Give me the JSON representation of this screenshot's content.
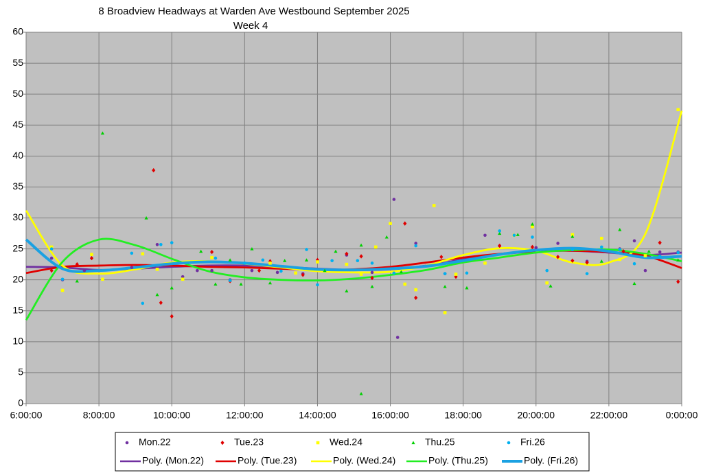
{
  "chart_data": {
    "type": "scatter",
    "title": "8 Broadview Headways at Warden Ave Westbound September 2025",
    "subtitle": "Week 4",
    "xlim": [
      6,
      24
    ],
    "xticks": [
      {
        "value": 6,
        "label": "6:00:00"
      },
      {
        "value": 8,
        "label": "8:00:00"
      },
      {
        "value": 10,
        "label": "10:00:00"
      },
      {
        "value": 12,
        "label": "12:00:00"
      },
      {
        "value": 14,
        "label": "14:00:00"
      },
      {
        "value": 16,
        "label": "16:00:00"
      },
      {
        "value": 18,
        "label": "18:00:00"
      },
      {
        "value": 20,
        "label": "20:00:00"
      },
      {
        "value": 22,
        "label": "22:00:00"
      },
      {
        "value": 24,
        "label": "0:00:00"
      }
    ],
    "ylim": [
      0,
      60
    ],
    "yticks": [
      0,
      5,
      10,
      15,
      20,
      25,
      30,
      35,
      40,
      45,
      50,
      55,
      60
    ],
    "grid": true,
    "legend": "bottom",
    "series": [
      {
        "name": "Mon.22",
        "color": "#7030a0",
        "marker": "circle",
        "x": [
          6.7,
          7.0,
          7.6,
          8.9,
          9.6,
          10.3,
          10.7,
          11.1,
          11.6,
          12.2,
          12.9,
          13.6,
          14.0,
          14.8,
          15.5,
          16.1,
          16.2,
          16.7,
          17.5,
          18.6,
          19.0,
          20.0,
          20.6,
          21.4,
          22.3,
          22.7,
          23.0,
          23.4,
          23.9
        ],
        "values": [
          23.5,
          20,
          21.5,
          22.0,
          25.7,
          20.5,
          21.5,
          21.5,
          20,
          21.5,
          21.2,
          21,
          23,
          24,
          21.2,
          33,
          10.7,
          25.9,
          21,
          27.2,
          25.5,
          25.2,
          25.9,
          23,
          25,
          26.3,
          21.5,
          24.5,
          24.5
        ]
      },
      {
        "name": "Tue.23",
        "color": "#e00000",
        "marker": "diamond",
        "x": [
          6.7,
          7.4,
          7.8,
          9.5,
          9.7,
          10.0,
          11.1,
          11.6,
          12.4,
          12.7,
          13.6,
          14.0,
          14.8,
          15.2,
          15.5,
          16.4,
          16.7,
          17.4,
          17.8,
          19.0,
          19.9,
          20.6,
          21.0,
          21.4,
          22.4,
          23.4,
          23.9
        ],
        "values": [
          21.5,
          22.5,
          23.5,
          37.7,
          16.3,
          14.1,
          24.5,
          19.8,
          21.5,
          23,
          20.8,
          23.2,
          24.2,
          23.8,
          20.3,
          29.1,
          17.1,
          23.7,
          20.5,
          25.5,
          25.3,
          23.7,
          23.1,
          22.8,
          24.6,
          26.0,
          19.7
        ]
      },
      {
        "name": "Wed.24",
        "color": "#ffff00",
        "marker": "square",
        "x": [
          6.7,
          7.0,
          7.8,
          8.1,
          9.2,
          9.6,
          10.3,
          11.1,
          12.7,
          13.4,
          14.0,
          14.8,
          15.2,
          15.6,
          16.0,
          16.4,
          16.7,
          17.2,
          17.5,
          17.8,
          18.6,
          19.4,
          19.9,
          20.3,
          21.0,
          21.8,
          22.3,
          23.0,
          23.9
        ],
        "values": [
          25.3,
          18.3,
          24.1,
          20.1,
          24.2,
          21.7,
          20.1,
          23.6,
          22.7,
          21.1,
          22.9,
          22.5,
          20.9,
          25.3,
          29.1,
          19.3,
          18.4,
          32,
          14.7,
          20.9,
          22.7,
          27.2,
          28.6,
          19.5,
          27.3,
          26.7,
          23.3,
          23.9,
          47.5
        ]
      },
      {
        "name": "Thu.25",
        "color": "#00d000",
        "marker": "triangle",
        "x": [
          7.4,
          8.1,
          9.3,
          9.6,
          10.0,
          10.8,
          11.2,
          11.6,
          11.9,
          12.2,
          12.7,
          13.1,
          13.7,
          14.2,
          14.5,
          14.8,
          15.2,
          15.2,
          15.5,
          15.9,
          16.3,
          17.5,
          18.1,
          19.0,
          19.5,
          19.9,
          20.4,
          21.0,
          21.8,
          22.3,
          22.7,
          23.1,
          23.9
        ],
        "values": [
          19.8,
          43.7,
          30,
          17.6,
          18.7,
          24.6,
          19.3,
          23.2,
          19.3,
          25,
          19.5,
          23.1,
          23.2,
          21.5,
          24.6,
          18.2,
          25.6,
          1.6,
          18.9,
          26.9,
          21.3,
          18.9,
          18.7,
          27.5,
          27.3,
          29,
          19,
          27,
          23,
          28.1,
          19.4,
          24.6,
          23.2
        ]
      },
      {
        "name": "Fri.26",
        "color": "#00b0f0",
        "marker": "circle",
        "x": [
          6.7,
          7.0,
          8.9,
          9.2,
          9.7,
          10.0,
          11.2,
          11.6,
          12.0,
          12.5,
          13.0,
          13.7,
          14.0,
          14.4,
          15.1,
          15.5,
          16.1,
          16.7,
          17.5,
          18.1,
          19.0,
          19.4,
          19.9,
          20.3,
          21.0,
          21.4,
          21.8,
          22.3,
          22.7,
          23.4,
          23.9
        ],
        "values": [
          25,
          20.1,
          24.3,
          16.2,
          25.7,
          26,
          23.5,
          19.9,
          22.7,
          23.2,
          21.4,
          24.9,
          19.2,
          23.1,
          23.1,
          22.7,
          21.1,
          25.5,
          21,
          21.1,
          27.9,
          27.2,
          26.9,
          21.5,
          24.9,
          21,
          25.3,
          24.9,
          22.6,
          23.8,
          24.4
        ]
      }
    ],
    "trendlines": [
      {
        "name": "Poly. (Mon.22)",
        "color": "#7030a0",
        "x": [
          6,
          7,
          8,
          9,
          10,
          11,
          12,
          13,
          14,
          15,
          16,
          17,
          18,
          19,
          20,
          21,
          22,
          23,
          24
        ],
        "values": [
          22.1,
          22.0,
          21.6,
          21.8,
          22.1,
          22.3,
          22.3,
          22.1,
          21.8,
          21.6,
          21.7,
          22.3,
          23.3,
          24.1,
          24.6,
          24.7,
          24.4,
          24.0,
          24.4
        ]
      },
      {
        "name": "Poly. (Tue.23)",
        "color": "#e00000",
        "x": [
          6,
          7,
          8,
          9,
          10,
          11,
          12,
          13,
          14,
          15,
          16,
          17,
          18,
          19,
          20,
          21,
          22,
          23,
          24
        ],
        "values": [
          21.1,
          22.1,
          22.3,
          22.4,
          22.3,
          22.1,
          22.0,
          21.8,
          21.6,
          21.7,
          22.1,
          22.8,
          23.6,
          24.2,
          24.6,
          24.7,
          24.5,
          23.9,
          21.9
        ]
      },
      {
        "name": "Poly. (Wed.24)",
        "color": "#ffff00",
        "x": [
          6,
          7,
          8,
          9,
          10,
          11,
          12,
          13,
          14,
          15,
          16,
          17,
          18,
          19,
          20,
          21,
          22,
          23,
          24
        ],
        "values": [
          31.2,
          22.3,
          21.0,
          21.7,
          22.8,
          23.0,
          22.6,
          22.0,
          21.4,
          21.2,
          21.3,
          22.3,
          24.0,
          25.1,
          24.7,
          22.8,
          22.8,
          27.4,
          47.3
        ]
      },
      {
        "name": "Poly. (Thu.25)",
        "color": "#22ee22",
        "x": [
          6,
          7,
          8,
          9,
          10,
          11,
          12,
          13,
          14,
          15,
          16,
          17,
          18,
          19,
          20,
          21,
          22,
          23,
          24
        ],
        "values": [
          13.5,
          22.9,
          26.5,
          25.6,
          23.4,
          21.4,
          20.4,
          20.0,
          19.9,
          20.2,
          20.8,
          21.6,
          22.8,
          23.6,
          24.4,
          24.8,
          24.9,
          24.2,
          23.0
        ]
      },
      {
        "name": "Poly. (Fri.26)",
        "color": "#1ba1e2",
        "x": [
          6,
          7,
          8,
          9,
          10,
          11,
          12,
          13,
          14,
          15,
          16,
          17,
          18,
          19,
          20,
          21,
          22,
          23,
          24
        ],
        "values": [
          26.5,
          21.8,
          21.5,
          22.0,
          22.6,
          22.9,
          22.7,
          22.2,
          21.7,
          21.6,
          21.8,
          22.2,
          23.1,
          24.1,
          24.8,
          25.1,
          24.6,
          23.6,
          23.8
        ]
      }
    ]
  }
}
